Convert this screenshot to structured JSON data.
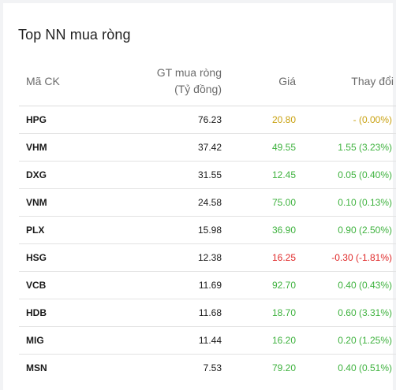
{
  "title": "Top NN mua ròng",
  "columns": {
    "code": "Mã CK",
    "value_line1": "GT mua ròng",
    "value_line2": "(Tỷ đồng)",
    "price": "Giá",
    "change": "Thay đổi"
  },
  "colors": {
    "up": "#3eb23e",
    "down": "#e02a2a",
    "reference": "#c9a212"
  },
  "rows": [
    {
      "code": "HPG",
      "value": "76.23",
      "price": "20.80",
      "change": "- (0.00%)",
      "trend": "ref"
    },
    {
      "code": "VHM",
      "value": "37.42",
      "price": "49.55",
      "change": "1.55 (3.23%)",
      "trend": "up"
    },
    {
      "code": "DXG",
      "value": "31.55",
      "price": "12.45",
      "change": "0.05 (0.40%)",
      "trend": "up"
    },
    {
      "code": "VNM",
      "value": "24.58",
      "price": "75.00",
      "change": "0.10 (0.13%)",
      "trend": "up"
    },
    {
      "code": "PLX",
      "value": "15.98",
      "price": "36.90",
      "change": "0.90 (2.50%)",
      "trend": "up"
    },
    {
      "code": "HSG",
      "value": "12.38",
      "price": "16.25",
      "change": "-0.30 (-1.81%)",
      "trend": "down"
    },
    {
      "code": "VCB",
      "value": "11.69",
      "price": "92.70",
      "change": "0.40 (0.43%)",
      "trend": "up"
    },
    {
      "code": "HDB",
      "value": "11.68",
      "price": "18.70",
      "change": "0.60 (3.31%)",
      "trend": "up"
    },
    {
      "code": "MIG",
      "value": "11.44",
      "price": "16.20",
      "change": "0.20 (1.25%)",
      "trend": "up"
    },
    {
      "code": "MSN",
      "value": "7.53",
      "price": "79.20",
      "change": "0.40 (0.51%)",
      "trend": "up"
    }
  ]
}
